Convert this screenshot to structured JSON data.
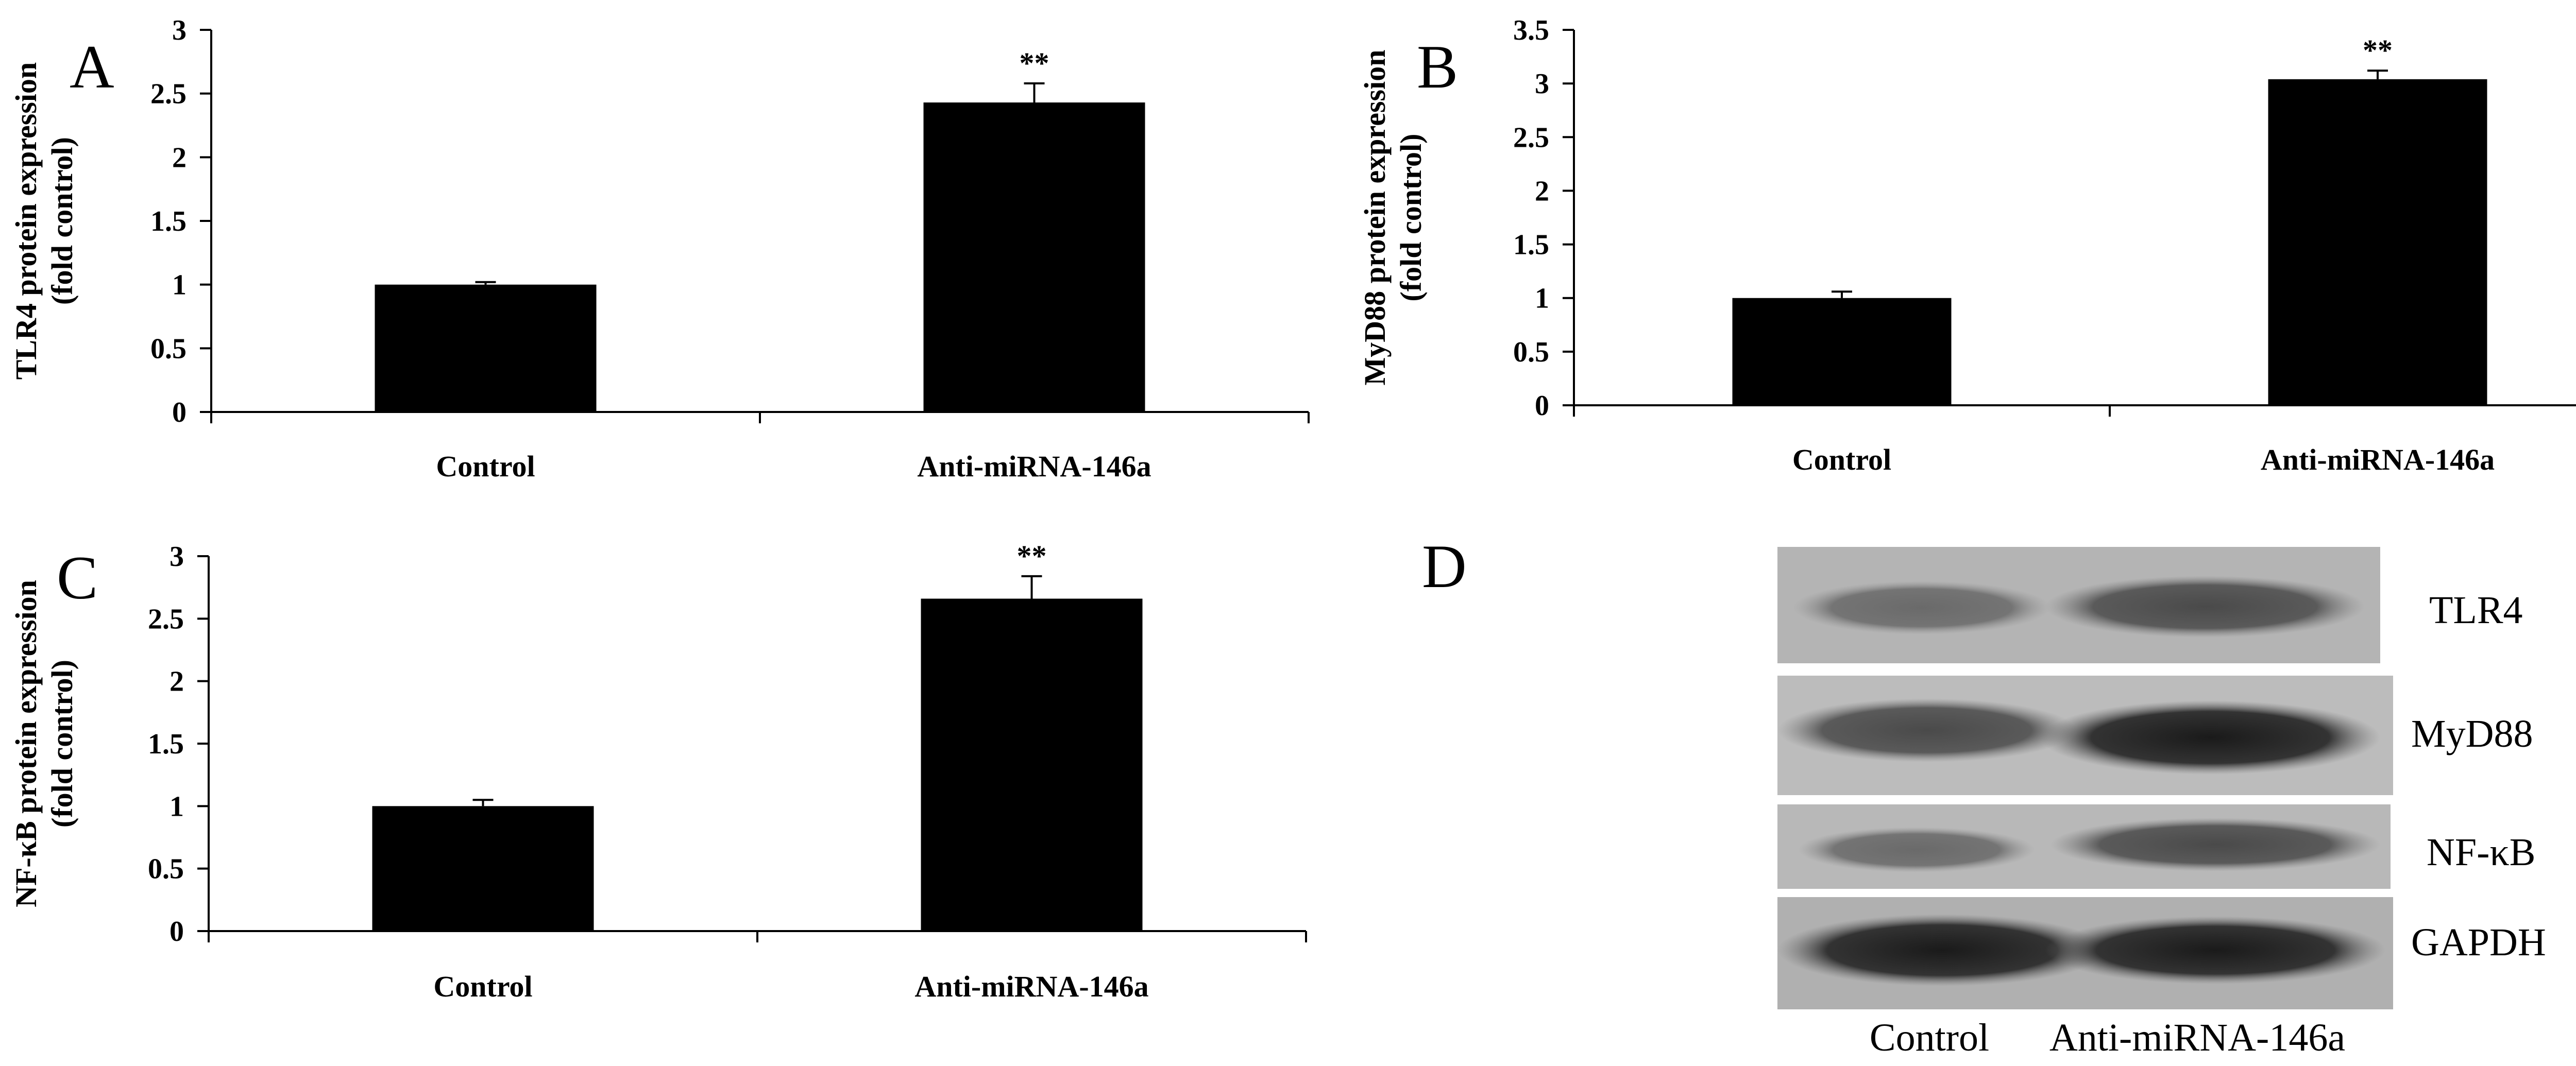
{
  "chart_data": [
    {
      "panel": "A",
      "type": "bar",
      "categories": [
        "Control",
        "Anti-miRNA-146a"
      ],
      "values": [
        1.0,
        2.43
      ],
      "errors": [
        0.02,
        0.15
      ],
      "significance": [
        "",
        "**"
      ],
      "ylabel_line1": "TLR4 protein expression",
      "ylabel_line2": "(fold control)",
      "ylim": [
        0,
        3
      ],
      "yticks": [
        "0",
        "0.5",
        "1",
        "1.5",
        "2",
        "2.5",
        "3"
      ]
    },
    {
      "panel": "B",
      "type": "bar",
      "categories": [
        "Control",
        "Anti-miRNA-146a"
      ],
      "values": [
        1.0,
        3.04
      ],
      "errors": [
        0.06,
        0.08
      ],
      "significance": [
        "",
        "**"
      ],
      "ylabel_line1": "MyD88 protein expression",
      "ylabel_line2": "(fold control)",
      "ylim": [
        0,
        3.5
      ],
      "yticks": [
        "0",
        "0.5",
        "1",
        "1.5",
        "2",
        "2.5",
        "3",
        "3.5"
      ]
    },
    {
      "panel": "C",
      "type": "bar",
      "categories": [
        "Control",
        "Anti-miRNA-146a"
      ],
      "values": [
        1.0,
        2.66
      ],
      "errors": [
        0.05,
        0.18
      ],
      "significance": [
        "",
        "**"
      ],
      "ylabel_line1": "NF-κB protein expression",
      "ylabel_line2": "(fold control)",
      "ylim": [
        0,
        3
      ],
      "yticks": [
        "0",
        "0.5",
        "1",
        "1.5",
        "2",
        "2.5",
        "3"
      ]
    }
  ],
  "blot": {
    "panel": "D",
    "rows": [
      "TLR4",
      "MyD88",
      "NF-κB",
      "GAPDH"
    ],
    "lanes": [
      "Control",
      "Anti-miRNA-146a"
    ]
  }
}
